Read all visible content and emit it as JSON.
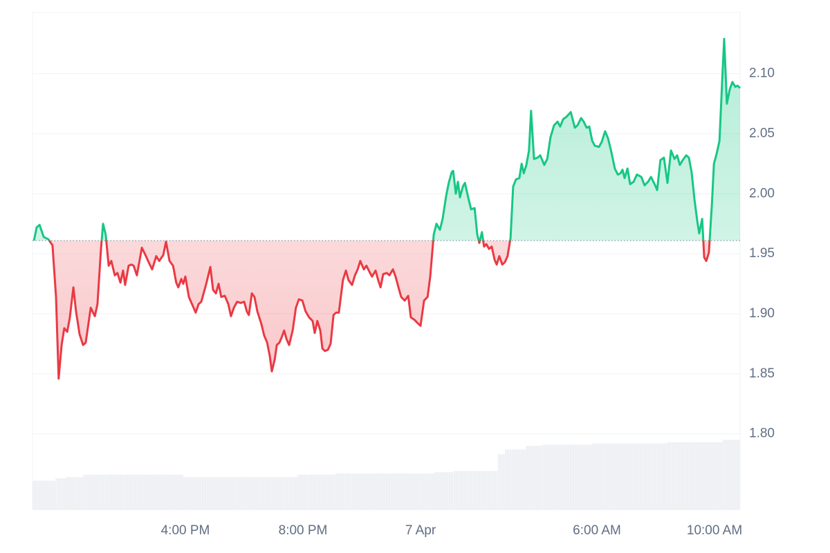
{
  "chart_data": {
    "type": "line",
    "x": [
      10.85,
      10.94,
      11.04,
      11.18,
      11.34,
      11.48,
      11.6,
      11.69,
      11.79,
      11.88,
      11.98,
      12.07,
      12.19,
      12.28,
      12.4,
      12.52,
      12.61,
      12.78,
      12.92,
      13.01,
      13.13,
      13.2,
      13.29,
      13.39,
      13.48,
      13.6,
      13.69,
      13.79,
      13.88,
      13.95,
      14.07,
      14.16,
      14.24,
      14.35,
      14.52,
      14.64,
      14.75,
      14.87,
      15.01,
      15.11,
      15.25,
      15.34,
      15.46,
      15.58,
      15.69,
      15.76,
      15.86,
      15.93,
      16.0,
      16.12,
      16.28,
      16.35,
      16.45,
      16.54,
      16.71,
      16.85,
      16.94,
      17.04,
      17.13,
      17.22,
      17.34,
      17.46,
      17.55,
      17.65,
      17.76,
      17.88,
      18.0,
      18.09,
      18.16,
      18.26,
      18.35,
      18.45,
      18.59,
      18.68,
      18.78,
      18.87,
      18.94,
      19.04,
      19.11,
      19.2,
      19.27,
      19.36,
      19.44,
      19.53,
      19.65,
      19.76,
      19.86,
      19.98,
      20.09,
      20.21,
      20.33,
      20.4,
      20.49,
      20.59,
      20.66,
      20.75,
      20.85,
      20.94,
      21.04,
      21.13,
      21.22,
      21.36,
      21.46,
      21.55,
      21.67,
      21.77,
      21.86,
      21.95,
      22.07,
      22.16,
      22.26,
      22.35,
      22.47,
      22.56,
      22.64,
      22.73,
      22.85,
      22.94,
      23.06,
      23.15,
      23.25,
      23.34,
      23.46,
      23.58,
      23.67,
      23.79,
      23.91,
      24.0,
      24.12,
      24.24,
      24.33,
      24.45,
      24.54,
      24.66,
      24.75,
      24.87,
      24.96,
      25.06,
      25.11,
      25.2,
      25.27,
      25.34,
      25.44,
      25.51,
      25.62,
      25.72,
      25.84,
      25.93,
      26.0,
      26.09,
      26.16,
      26.24,
      26.33,
      26.42,
      26.52,
      26.59,
      26.68,
      26.78,
      26.87,
      26.96,
      27.06,
      27.15,
      27.25,
      27.36,
      27.44,
      27.51,
      27.6,
      27.69,
      27.76,
      27.86,
      27.98,
      28.07,
      28.21,
      28.31,
      28.42,
      28.54,
      28.66,
      28.75,
      28.85,
      28.96,
      29.11,
      29.25,
      29.34,
      29.46,
      29.55,
      29.65,
      29.74,
      29.84,
      29.93,
      30.07,
      30.16,
      30.28,
      30.38,
      30.49,
      30.61,
      30.71,
      30.8,
      30.87,
      30.94,
      31.04,
      31.13,
      31.25,
      31.36,
      31.51,
      31.62,
      31.74,
      31.84,
      31.98,
      32.05,
      32.16,
      32.28,
      32.4,
      32.52,
      32.64,
      32.73,
      32.82,
      32.92,
      33.04,
      33.13,
      33.22,
      33.32,
      33.41,
      33.48,
      33.58,
      33.65,
      33.72,
      33.81,
      33.91,
      33.98,
      34.07,
      34.17,
      34.26,
      34.33,
      34.42,
      34.52,
      34.61,
      34.71,
      34.78,
      34.87
    ],
    "values": [
      1.961,
      1.972,
      1.974,
      1.964,
      1.962,
      1.957,
      1.914,
      1.846,
      1.874,
      1.888,
      1.885,
      1.897,
      1.922,
      1.902,
      1.883,
      1.874,
      1.876,
      1.905,
      1.898,
      1.908,
      1.954,
      1.975,
      1.966,
      1.94,
      1.944,
      1.932,
      1.934,
      1.926,
      1.936,
      1.924,
      1.94,
      1.941,
      1.94,
      1.932,
      1.955,
      1.949,
      1.943,
      1.937,
      1.948,
      1.944,
      1.949,
      1.96,
      1.944,
      1.94,
      1.926,
      1.922,
      1.929,
      1.925,
      1.931,
      1.914,
      1.905,
      1.901,
      1.908,
      1.91,
      1.925,
      1.939,
      1.92,
      1.917,
      1.925,
      1.914,
      1.915,
      1.908,
      1.898,
      1.905,
      1.91,
      1.909,
      1.91,
      1.902,
      1.899,
      1.917,
      1.914,
      1.902,
      1.891,
      1.882,
      1.876,
      1.865,
      1.852,
      1.862,
      1.874,
      1.876,
      1.88,
      1.886,
      1.879,
      1.874,
      1.886,
      1.905,
      1.912,
      1.911,
      1.902,
      1.897,
      1.894,
      1.884,
      1.894,
      1.886,
      1.871,
      1.869,
      1.87,
      1.875,
      1.899,
      1.901,
      1.901,
      1.928,
      1.936,
      1.928,
      1.924,
      1.932,
      1.937,
      1.944,
      1.937,
      1.94,
      1.935,
      1.931,
      1.936,
      1.928,
      1.922,
      1.933,
      1.934,
      1.932,
      1.937,
      1.931,
      1.922,
      1.914,
      1.911,
      1.915,
      1.897,
      1.895,
      1.892,
      1.89,
      1.911,
      1.914,
      1.931,
      1.966,
      1.975,
      1.97,
      1.979,
      1.998,
      2.009,
      2.018,
      2.019,
      2.0,
      2.01,
      1.997,
      2.006,
      2.009,
      1.997,
      1.987,
      1.988,
      1.966,
      1.959,
      1.968,
      1.956,
      1.958,
      1.954,
      1.956,
      1.945,
      1.941,
      1.948,
      1.941,
      1.943,
      1.948,
      1.963,
      2.006,
      2.012,
      2.013,
      2.025,
      2.017,
      2.024,
      2.036,
      2.069,
      2.029,
      2.03,
      2.032,
      2.024,
      2.029,
      2.047,
      2.057,
      2.06,
      2.056,
      2.062,
      2.064,
      2.068,
      2.055,
      2.057,
      2.063,
      2.06,
      2.055,
      2.056,
      2.044,
      2.04,
      2.039,
      2.043,
      2.052,
      2.046,
      2.035,
      2.021,
      2.016,
      2.017,
      2.02,
      2.013,
      2.021,
      2.008,
      2.01,
      2.016,
      2.014,
      2.007,
      2.01,
      2.014,
      2.007,
      2.003,
      2.028,
      2.03,
      2.009,
      2.036,
      2.029,
      2.032,
      2.024,
      2.028,
      2.032,
      2.03,
      2.018,
      1.995,
      1.978,
      1.967,
      1.979,
      1.947,
      1.944,
      1.951,
      1.991,
      2.025,
      2.033,
      2.044,
      2.094,
      2.129,
      2.075,
      2.087,
      2.093,
      2.089,
      2.09,
      2.088
    ],
    "baseline": 1.961,
    "up_color": "#16c784",
    "down_color": "#ea3943",
    "volume": {
      "bins": [
        10.8,
        11.58,
        11.93,
        12.52,
        13.18,
        15.93,
        19.81,
        21.11,
        21.39,
        24.47,
        25.11,
        26.63,
        26.87,
        27.58,
        28.16,
        29.81,
        32.4,
        34.28,
        34.87
      ],
      "values": [
        1.761,
        1.763,
        1.764,
        1.766,
        1.766,
        1.764,
        1.766,
        1.767,
        1.767,
        1.768,
        1.769,
        1.783,
        1.787,
        1.79,
        1.791,
        1.792,
        1.793,
        1.795
      ],
      "color": "#eef0f4"
    },
    "xlim": [
      10.8,
      34.87
    ],
    "ylim": [
      1.737,
      2.151
    ],
    "xticks": [
      {
        "value": 16,
        "label": "4:00 PM"
      },
      {
        "value": 20,
        "label": "8:00 PM"
      },
      {
        "value": 24,
        "label": "7 Apr"
      },
      {
        "value": 30,
        "label": "6:00 AM"
      },
      {
        "value": 34,
        "label": "10:00 AM"
      }
    ],
    "yticks": [
      {
        "value": 1.8,
        "label": "1.80"
      },
      1.85,
      {
        "value": 1.9,
        "label": "1.90"
      },
      1.95,
      {
        "value": 2,
        "label": "2.00"
      },
      2.05,
      {
        "value": 2.1,
        "label": "2.10"
      }
    ],
    "grid": true
  }
}
